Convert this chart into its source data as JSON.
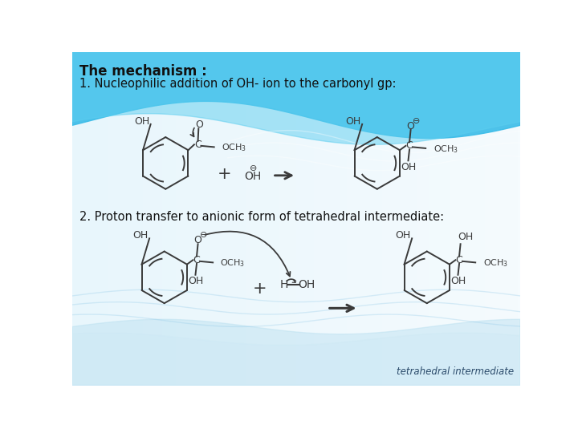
{
  "title_line1": "The mechanism :",
  "title_line2": "1. Nucleophilic addition of OH- ion to the carbonyl gp:",
  "label2": "2. Proton transfer to anionic form of tetrahedral intermediate:",
  "footer_text": "tetrahedral intermediate",
  "bg_light": "#daeef8",
  "bg_white": "#f0f8fd",
  "banner_blue": "#3bbce8",
  "wave_blue": "#7ecfee",
  "wave_light": "#aadcf2",
  "text_dark": "#111111",
  "text_footer": "#2a4a6a",
  "struct_color": "#3a3a3a"
}
